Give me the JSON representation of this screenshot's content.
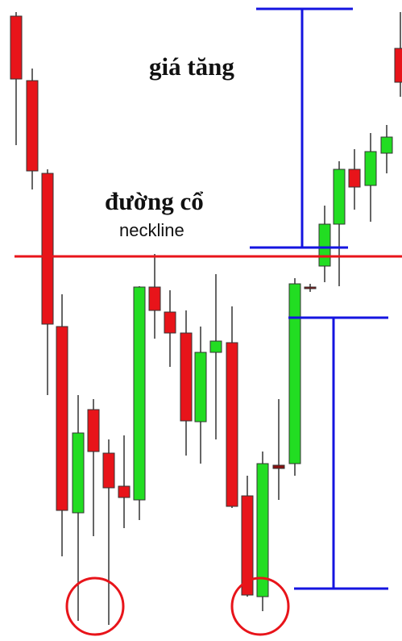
{
  "labels": {
    "rise": "giá tăng",
    "neckline_vi": "đường cổ",
    "neckline_en": "neckline"
  }
}
